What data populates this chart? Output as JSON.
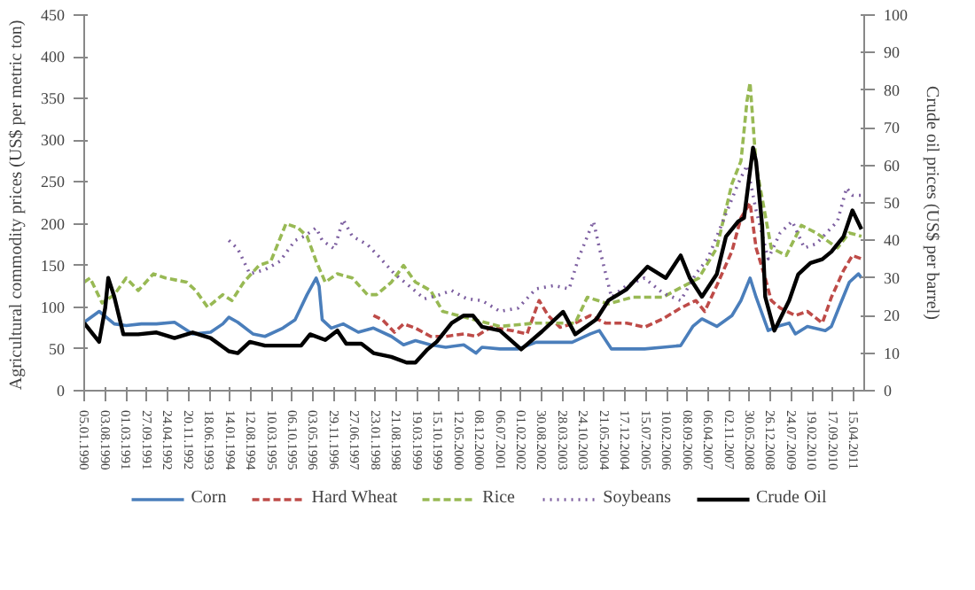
{
  "chart_data": {
    "type": "line",
    "xlim": [
      "1990-01-01",
      "2011-07-29"
    ],
    "xticks": [
      {
        "value": "1990-01-05",
        "label": "05.01.1990"
      },
      {
        "value": "1990-08-03",
        "label": "03.08.1990"
      },
      {
        "value": "1991-03-01",
        "label": "01.03.1991"
      },
      {
        "value": "1991-09-27",
        "label": "27.09.1991"
      },
      {
        "value": "1992-04-24",
        "label": "24.04.1992"
      },
      {
        "value": "1992-11-20",
        "label": "20.11.1992"
      },
      {
        "value": "1993-06-18",
        "label": "18.06.1993"
      },
      {
        "value": "1994-01-14",
        "label": "14.01.1994"
      },
      {
        "value": "1994-08-12",
        "label": "12.08.1994"
      },
      {
        "value": "1995-03-10",
        "label": "10.03.1995"
      },
      {
        "value": "1995-10-06",
        "label": "06.10.1995"
      },
      {
        "value": "1996-05-03",
        "label": "03.05.1996"
      },
      {
        "value": "1996-11-29",
        "label": "29.11.1996"
      },
      {
        "value": "1997-06-27",
        "label": "27.06.1997"
      },
      {
        "value": "1998-01-23",
        "label": "23.01.1998"
      },
      {
        "value": "1998-08-21",
        "label": "21.08.1998"
      },
      {
        "value": "1999-03-19",
        "label": "19.03.1999"
      },
      {
        "value": "1999-10-15",
        "label": "15.10.1999"
      },
      {
        "value": "2000-05-12",
        "label": "12.05.2000"
      },
      {
        "value": "2000-12-08",
        "label": "08.12.2000"
      },
      {
        "value": "2001-07-06",
        "label": "06.07.2001"
      },
      {
        "value": "2002-02-01",
        "label": "01.02.2002"
      },
      {
        "value": "2002-08-30",
        "label": "30.08.2002"
      },
      {
        "value": "2003-03-28",
        "label": "28.03.2003"
      },
      {
        "value": "2003-10-24",
        "label": "24.10.2003"
      },
      {
        "value": "2004-05-21",
        "label": "21.05.2004"
      },
      {
        "value": "2004-12-17",
        "label": "17.12.2004"
      },
      {
        "value": "2005-07-15",
        "label": "15.07.2005"
      },
      {
        "value": "2006-02-10",
        "label": "10.02.2006"
      },
      {
        "value": "2006-09-08",
        "label": "08.09.2006"
      },
      {
        "value": "2007-04-06",
        "label": "06.04.2007"
      },
      {
        "value": "2007-11-02",
        "label": "02.11.2007"
      },
      {
        "value": "2008-05-30",
        "label": "30.05.2008"
      },
      {
        "value": "2008-12-26",
        "label": "26.12.2008"
      },
      {
        "value": "2009-07-24",
        "label": "24.07.2009"
      },
      {
        "value": "2010-02-19",
        "label": "19.02.2010"
      },
      {
        "value": "2010-09-17",
        "label": "17.09.2010"
      },
      {
        "value": "2011-04-15",
        "label": "15.04.2011"
      }
    ],
    "ylim": [
      0,
      450
    ],
    "yticks": [
      0,
      50,
      100,
      150,
      200,
      250,
      300,
      350,
      400,
      450
    ],
    "y2lim": [
      0,
      100
    ],
    "y2ticks": [
      0,
      10,
      20,
      30,
      40,
      50,
      60,
      70,
      80,
      90,
      100
    ],
    "ylabel": "Agricultural  commodity prices (US$ per metric ton)",
    "y2label": "Crude oil prices (US$ per barrel)",
    "grid": false,
    "legend": "bottom",
    "series": [
      {
        "name": "Corn",
        "color": "#4a7ebb",
        "line_style": "solid",
        "x": [
          "1990-01",
          "1990-06",
          "1990-11",
          "1991-03",
          "1991-08",
          "1992-01",
          "1992-07",
          "1993-01",
          "1993-07",
          "1993-11",
          "1994-01",
          "1994-04",
          "1994-09",
          "1995-01",
          "1995-07",
          "1995-11",
          "1996-03",
          "1996-06",
          "1996-07",
          "1996-08",
          "1996-11",
          "1997-03",
          "1997-08",
          "1998-01",
          "1998-07",
          "1998-11",
          "1999-03",
          "1999-08",
          "2000-01",
          "2000-07",
          "2000-11",
          "2001-01",
          "2001-07",
          "2002-01",
          "2002-07",
          "2003-01",
          "2003-07",
          "2004-01",
          "2004-04",
          "2004-08",
          "2005-01",
          "2005-07",
          "2006-01",
          "2006-07",
          "2006-11",
          "2007-02",
          "2007-07",
          "2007-12",
          "2008-03",
          "2008-06",
          "2008-08",
          "2008-12",
          "2009-03",
          "2009-07",
          "2009-09",
          "2010-01",
          "2010-07",
          "2010-09",
          "2010-12",
          "2011-03",
          "2011-06",
          "2011-07"
        ],
        "values": [
          82,
          95,
          80,
          78,
          80,
          80,
          82,
          68,
          70,
          80,
          88,
          82,
          68,
          65,
          75,
          85,
          115,
          135,
          125,
          85,
          75,
          80,
          70,
          75,
          65,
          55,
          60,
          55,
          52,
          55,
          45,
          52,
          50,
          50,
          58,
          58,
          58,
          68,
          72,
          50,
          50,
          50,
          52,
          54,
          77,
          86,
          77,
          90,
          108,
          135,
          112,
          72,
          77,
          81,
          68,
          77,
          72,
          77,
          104,
          130,
          140,
          135
        ]
      },
      {
        "name": "Hard Wheat",
        "color": "#be4b48",
        "line_style": "dashed",
        "x": [
          "1998-01",
          "1998-04",
          "1998-08",
          "1998-11",
          "1999-03",
          "1999-08",
          "2000-01",
          "2000-07",
          "2000-11",
          "2001-04",
          "2001-11",
          "2002-04",
          "2002-08",
          "2002-11",
          "2003-03",
          "2003-08",
          "2004-01",
          "2004-06",
          "2005-01",
          "2005-07",
          "2006-01",
          "2006-07",
          "2006-12",
          "2007-03",
          "2007-07",
          "2007-12",
          "2008-03",
          "2008-06",
          "2008-08",
          "2008-11",
          "2009-01",
          "2009-04",
          "2009-09",
          "2010-01",
          "2010-06",
          "2010-09",
          "2011-01",
          "2011-04",
          "2011-07"
        ],
        "values": [
          90,
          85,
          70,
          80,
          75,
          65,
          65,
          68,
          65,
          76,
          72,
          68,
          108,
          90,
          76,
          81,
          90,
          81,
          81,
          76,
          86,
          99,
          108,
          95,
          126,
          167,
          207,
          225,
          171,
          135,
          108,
          99,
          90,
          95,
          81,
          112,
          144,
          162,
          158
        ]
      },
      {
        "name": "Rice",
        "color": "#98b954",
        "line_style": "dashed",
        "x": [
          "1990-01",
          "1990-03",
          "1990-07",
          "1990-11",
          "1991-03",
          "1991-07",
          "1991-12",
          "1992-04",
          "1992-11",
          "1993-02",
          "1993-06",
          "1993-11",
          "1994-02",
          "1994-06",
          "1994-11",
          "1995-03",
          "1995-08",
          "1995-12",
          "1996-03",
          "1996-06",
          "1996-09",
          "1997-01",
          "1997-06",
          "1997-11",
          "1998-02",
          "1998-07",
          "1998-11",
          "1999-03",
          "1999-08",
          "1999-12",
          "2001-07",
          "2002-07",
          "2003-08",
          "2003-12",
          "2004-07",
          "2005-03",
          "2006-01",
          "2007-01",
          "2007-07",
          "2007-12",
          "2008-03",
          "2008-04",
          "2008-05",
          "2008-06",
          "2008-08",
          "2009-01",
          "2009-06",
          "2009-11",
          "2010-04",
          "2010-11",
          "2011-03",
          "2011-07"
        ],
        "values": [
          130,
          135,
          105,
          115,
          135,
          120,
          140,
          135,
          130,
          120,
          100,
          115,
          108,
          130,
          150,
          155,
          200,
          195,
          185,
          155,
          130,
          140,
          135,
          115,
          115,
          130,
          150,
          130,
          120,
          95,
          77,
          81,
          81,
          112,
          104,
          112,
          112,
          135,
          171,
          248,
          275,
          311,
          347,
          369,
          270,
          171,
          162,
          198,
          189,
          171,
          189,
          185
        ]
      },
      {
        "name": "Soybeans",
        "color": "#7d5fa0",
        "line_style": "dotted",
        "x": [
          "1994-01",
          "1994-04",
          "1994-08",
          "1995-01",
          "1995-06",
          "1995-11",
          "1996-02",
          "1996-06",
          "1996-08",
          "1996-12",
          "1997-03",
          "1997-06",
          "1997-11",
          "1998-03",
          "1998-08",
          "1999-01",
          "1999-06",
          "1999-11",
          "2000-03",
          "2000-08",
          "2001-01",
          "2001-07",
          "2002-01",
          "2002-07",
          "2003-01",
          "2003-06",
          "2003-09",
          "2004-02",
          "2004-04",
          "2004-08",
          "2005-01",
          "2005-07",
          "2006-01",
          "2006-07",
          "2006-12",
          "2007-04",
          "2007-09",
          "2008-02",
          "2008-05",
          "2008-08",
          "2008-12",
          "2009-04",
          "2009-08",
          "2009-12",
          "2010-04",
          "2010-11",
          "2011-02",
          "2011-04",
          "2011-07"
        ],
        "values": [
          180,
          170,
          140,
          145,
          155,
          180,
          185,
          195,
          180,
          170,
          205,
          185,
          175,
          160,
          140,
          125,
          110,
          115,
          120,
          110,
          108,
          95,
          99,
          122,
          126,
          122,
          158,
          203,
          171,
          112,
          126,
          135,
          117,
          108,
          140,
          158,
          203,
          248,
          270,
          216,
          158,
          189,
          203,
          171,
          176,
          203,
          243,
          234,
          234
        ]
      },
      {
        "name": "Crude Oil",
        "color": "#000000",
        "line_style": "solid",
        "axis": "y2",
        "x": [
          "1990-01",
          "1990-04",
          "1990-06",
          "1990-08",
          "1990-09",
          "1990-11",
          "1991-02",
          "1991-07",
          "1992-01",
          "1992-07",
          "1993-01",
          "1993-07",
          "1994-01",
          "1994-04",
          "1994-08",
          "1995-01",
          "1995-07",
          "1996-01",
          "1996-04",
          "1996-09",
          "1997-01",
          "1997-04",
          "1997-09",
          "1998-01",
          "1998-07",
          "1998-12",
          "1999-03",
          "1999-07",
          "1999-10",
          "2000-03",
          "2000-07",
          "2000-10",
          "2001-01",
          "2001-07",
          "2002-02",
          "2002-09",
          "2003-04",
          "2003-08",
          "2004-03",
          "2004-07",
          "2005-01",
          "2005-08",
          "2006-02",
          "2006-07",
          "2006-10",
          "2007-02",
          "2007-07",
          "2007-10",
          "2008-02",
          "2008-04",
          "2008-07",
          "2008-08",
          "2008-10",
          "2008-11",
          "2009-02",
          "2009-07",
          "2009-10",
          "2010-02",
          "2010-06",
          "2010-09",
          "2011-01",
          "2011-04",
          "2011-07"
        ],
        "values": [
          18,
          15,
          13,
          22,
          30,
          25,
          15,
          15,
          15.5,
          14,
          15.5,
          14,
          10.5,
          10,
          13,
          12,
          12,
          12,
          15,
          13.5,
          16,
          12.5,
          12.5,
          10,
          9,
          7.5,
          7.5,
          11,
          13,
          18,
          20,
          20,
          17,
          16,
          11,
          15.8,
          21,
          15,
          19,
          24,
          27,
          33,
          30,
          36,
          30,
          25,
          31,
          41,
          45,
          46,
          64.7,
          61,
          44,
          25,
          16,
          24,
          31,
          34,
          35,
          37,
          41,
          48,
          43
        ]
      }
    ]
  }
}
